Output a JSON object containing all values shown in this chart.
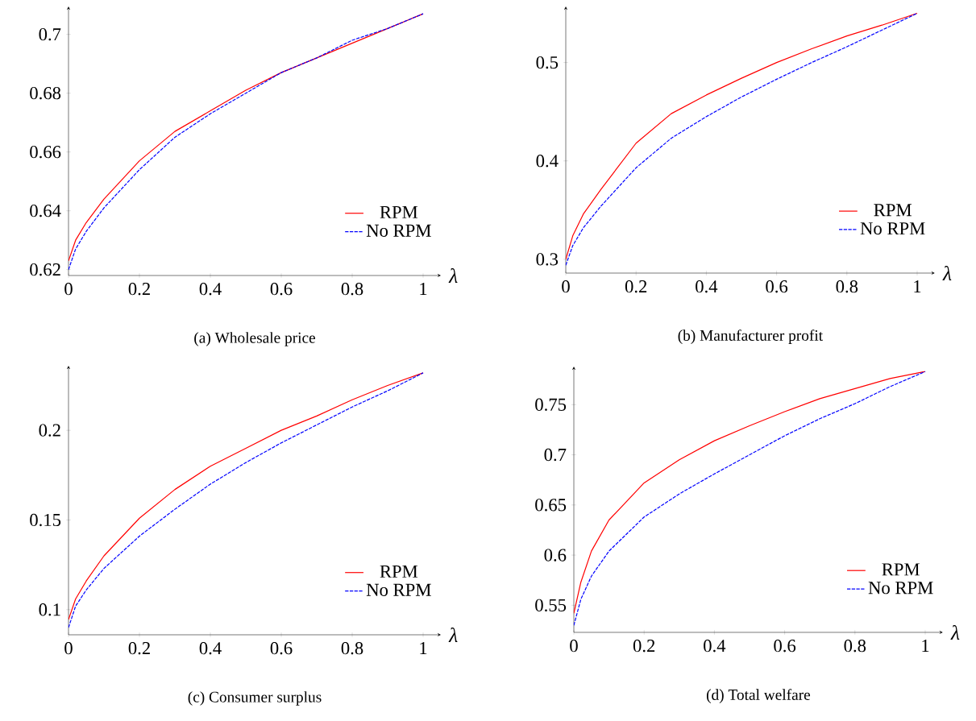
{
  "chart_data": [
    {
      "type": "line",
      "title": "(a) Wholesale price",
      "xlabel": "λ",
      "legend": "bottom right",
      "marker": "none",
      "x": [
        0,
        0.02,
        0.05,
        0.1,
        0.2,
        0.3,
        0.4,
        0.5,
        0.6,
        0.7,
        0.8,
        0.9,
        1
      ],
      "xlim": [
        0,
        1.05
      ],
      "xticks": [
        0,
        0.2,
        0.4,
        0.6,
        0.8,
        1
      ],
      "ylim": [
        0.618,
        0.7095
      ],
      "yticks": [
        0.62,
        0.64,
        0.66,
        0.68,
        0.7
      ],
      "series": [
        {
          "name": "RPM",
          "color": "#ff0000",
          "line_style": "solid",
          "values": [
            0.623,
            0.63,
            0.636,
            0.644,
            0.657,
            0.667,
            0.674,
            0.681,
            0.687,
            0.692,
            0.697,
            0.702,
            0.707
          ]
        },
        {
          "name": "No RPM",
          "color": "#0000ff",
          "line_style": "dashed",
          "values": [
            0.62,
            0.627,
            0.633,
            0.641,
            0.654,
            0.665,
            0.673,
            0.68,
            0.687,
            0.692,
            0.698,
            0.702,
            0.707
          ]
        }
      ]
    },
    {
      "type": "line",
      "title": "(b) Manufacturer profit",
      "xlabel": "λ",
      "legend": "bottom right",
      "marker": "none",
      "x": [
        0,
        0.02,
        0.05,
        0.1,
        0.2,
        0.3,
        0.4,
        0.5,
        0.6,
        0.7,
        0.8,
        0.9,
        1
      ],
      "xlim": [
        0,
        1.05
      ],
      "xticks": [
        0,
        0.2,
        0.4,
        0.6,
        0.8,
        1
      ],
      "ylim": [
        0.286,
        0.557
      ],
      "yticks": [
        0.3,
        0.4,
        0.5
      ],
      "series": [
        {
          "name": "RPM",
          "color": "#ff0000",
          "line_style": "solid",
          "values": [
            0.3,
            0.324,
            0.346,
            0.371,
            0.418,
            0.448,
            0.467,
            0.484,
            0.5,
            0.514,
            0.527,
            0.538,
            0.55
          ]
        },
        {
          "name": "No RPM",
          "color": "#0000ff",
          "line_style": "dashed",
          "values": [
            0.294,
            0.314,
            0.332,
            0.354,
            0.393,
            0.423,
            0.445,
            0.465,
            0.483,
            0.5,
            0.516,
            0.533,
            0.55
          ]
        }
      ]
    },
    {
      "type": "line",
      "title": "(c) Consumer surplus",
      "xlabel": "λ",
      "legend": "bottom right",
      "marker": "none",
      "x": [
        0,
        0.02,
        0.05,
        0.1,
        0.2,
        0.3,
        0.4,
        0.5,
        0.6,
        0.7,
        0.8,
        0.9,
        1
      ],
      "xlim": [
        0,
        1.05
      ],
      "xticks": [
        0,
        0.2,
        0.4,
        0.6,
        0.8,
        1
      ],
      "ylim": [
        0.086,
        0.236
      ],
      "yticks": [
        0.1,
        0.15,
        0.2
      ],
      "series": [
        {
          "name": "RPM",
          "color": "#ff0000",
          "line_style": "solid",
          "values": [
            0.0945,
            0.106,
            0.116,
            0.13,
            0.151,
            0.167,
            0.18,
            0.19,
            0.2,
            0.208,
            0.217,
            0.225,
            0.232
          ]
        },
        {
          "name": "No RPM",
          "color": "#0000ff",
          "line_style": "dashed",
          "values": [
            0.09,
            0.102,
            0.111,
            0.123,
            0.141,
            0.156,
            0.17,
            0.182,
            0.193,
            0.203,
            0.213,
            0.222,
            0.232
          ]
        }
      ]
    },
    {
      "type": "line",
      "title": "(d) Total welfare",
      "xlabel": "λ",
      "legend": "bottom right",
      "marker": "none",
      "x": [
        0,
        0.02,
        0.05,
        0.1,
        0.2,
        0.3,
        0.4,
        0.5,
        0.6,
        0.7,
        0.8,
        0.9,
        1
      ],
      "xlim": [
        0,
        1.05
      ],
      "xticks": [
        0,
        0.2,
        0.4,
        0.6,
        0.8,
        1
      ],
      "ylim": [
        0.523,
        0.788
      ],
      "yticks": [
        0.55,
        0.6,
        0.65,
        0.7,
        0.75
      ],
      "series": [
        {
          "name": "RPM",
          "color": "#ff0000",
          "line_style": "solid",
          "values": [
            0.542,
            0.573,
            0.604,
            0.635,
            0.672,
            0.695,
            0.714,
            0.729,
            0.743,
            0.756,
            0.766,
            0.776,
            0.783
          ]
        },
        {
          "name": "No RPM",
          "color": "#0000ff",
          "line_style": "dashed",
          "values": [
            0.53,
            0.556,
            0.579,
            0.604,
            0.638,
            0.661,
            0.681,
            0.7,
            0.719,
            0.736,
            0.751,
            0.768,
            0.783
          ]
        }
      ]
    }
  ]
}
